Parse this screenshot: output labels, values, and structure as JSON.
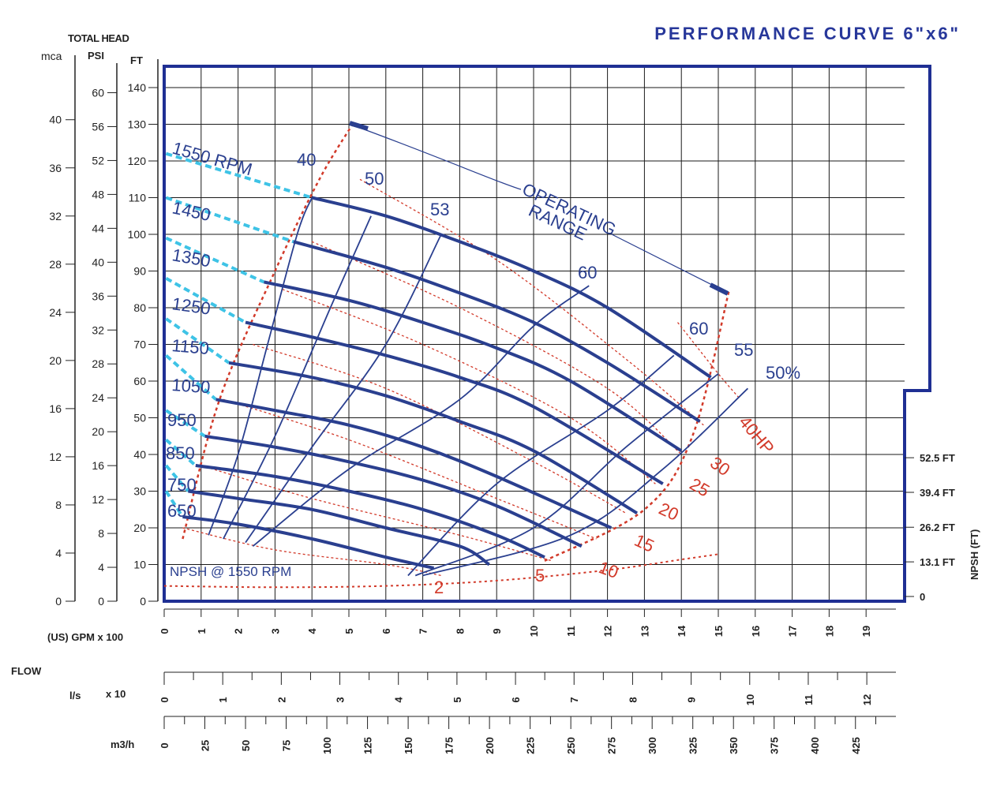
{
  "colors": {
    "frame": "#1f2f93",
    "grid": "#1a1a1a",
    "rpm_curve": "#2a3f8f",
    "eff_curve": "#2a3f8f",
    "power_curve": "#d23a2a",
    "npsh_curve": "#d23a2a",
    "dashed_extension": "#3ec3e6",
    "title": "#27379a"
  },
  "title": "PERFORMANCE CURVE  6\"x6\"",
  "labels": {
    "total_head": "TOTAL HEAD",
    "mca": "mca",
    "psi": "PSI",
    "ft": "FT",
    "gpm": "(US) GPM  x 100",
    "flow": "FLOW",
    "ls": "l/s",
    "ls_mult": "x 10",
    "m3h": "m3/h",
    "npsh_axis": "NPSH  (FT)",
    "npsh_curve": "NPSH @ 1550 RPM",
    "operating_line1": "OPERATING",
    "operating_line2": "RANGE"
  },
  "chart_data": {
    "type": "line",
    "x_unit": "GPM x 100",
    "xlim": [
      0,
      20
    ],
    "ylim": [
      0,
      145
    ],
    "x_ticks": [
      "0",
      "1",
      "2",
      "3",
      "4",
      "5",
      "6",
      "7",
      "8",
      "9",
      "10",
      "11",
      "12",
      "13",
      "14",
      "15",
      "16",
      "17",
      "18",
      "19"
    ],
    "ft_ticks": [
      "0",
      "10",
      "20",
      "30",
      "40",
      "50",
      "60",
      "70",
      "80",
      "90",
      "100",
      "110",
      "120",
      "130",
      "140"
    ],
    "psi_ticks": [
      "0",
      "4",
      "8",
      "12",
      "16",
      "20",
      "24",
      "28",
      "32",
      "36",
      "40",
      "44",
      "48",
      "52",
      "56",
      "60"
    ],
    "mca_ticks": [
      "0",
      "4",
      "8",
      "12",
      "16",
      "20",
      "24",
      "28",
      "32",
      "36",
      "40"
    ],
    "ls_ticks": [
      "0",
      "1",
      "2",
      "3",
      "4",
      "5",
      "6",
      "7",
      "8",
      "9",
      "10",
      "11",
      "12"
    ],
    "m3h_ticks": [
      "0",
      "25",
      "50",
      "75",
      "100",
      "125",
      "150",
      "175",
      "200",
      "225",
      "250",
      "275",
      "300",
      "325",
      "350",
      "375",
      "400",
      "425"
    ],
    "npsh_ticks": [
      "0",
      "13.1 FT",
      "26.2 FT",
      "39.4 FT",
      "52.5 FT"
    ],
    "npsh_values_ft": [
      0,
      13.1,
      26.2,
      39.4,
      52.5
    ],
    "rpm_curves": [
      {
        "label": "1550 RPM",
        "points": [
          [
            4.0,
            110
          ],
          [
            6,
            105
          ],
          [
            8,
            98
          ],
          [
            10,
            90
          ],
          [
            12,
            80
          ],
          [
            14.8,
            61
          ]
        ]
      },
      {
        "label": "1450",
        "points": [
          [
            3.5,
            98
          ],
          [
            6,
            91
          ],
          [
            8,
            84
          ],
          [
            10,
            76
          ],
          [
            12,
            65
          ],
          [
            14.5,
            49
          ]
        ]
      },
      {
        "label": "1350",
        "points": [
          [
            2.7,
            87
          ],
          [
            5,
            82
          ],
          [
            7,
            76
          ],
          [
            9,
            69
          ],
          [
            11,
            60
          ],
          [
            14,
            41
          ]
        ]
      },
      {
        "label": "1250",
        "points": [
          [
            2.2,
            76
          ],
          [
            4,
            72
          ],
          [
            6,
            67
          ],
          [
            8,
            61
          ],
          [
            10,
            53
          ],
          [
            13.5,
            32
          ]
        ]
      },
      {
        "label": "1150",
        "points": [
          [
            1.75,
            65
          ],
          [
            4,
            61
          ],
          [
            6,
            56
          ],
          [
            8,
            49
          ],
          [
            10,
            41
          ],
          [
            12.8,
            24
          ]
        ]
      },
      {
        "label": "1050",
        "points": [
          [
            1.4,
            55
          ],
          [
            3,
            52
          ],
          [
            5,
            48
          ],
          [
            7,
            42
          ],
          [
            9,
            34
          ],
          [
            12.1,
            20
          ]
        ]
      },
      {
        "label": "950",
        "points": [
          [
            1.1,
            45
          ],
          [
            3,
            42
          ],
          [
            5,
            38
          ],
          [
            7,
            33
          ],
          [
            9,
            26
          ],
          [
            11.3,
            15
          ]
        ]
      },
      {
        "label": "850",
        "points": [
          [
            0.85,
            37
          ],
          [
            3,
            34
          ],
          [
            5,
            30
          ],
          [
            7,
            25
          ],
          [
            9,
            18
          ],
          [
            10.3,
            12
          ]
        ]
      },
      {
        "label": "750",
        "points": [
          [
            0.65,
            30
          ],
          [
            2,
            28
          ],
          [
            4,
            25
          ],
          [
            6,
            20
          ],
          [
            8,
            15
          ],
          [
            8.8,
            10
          ]
        ]
      },
      {
        "label": "650",
        "points": [
          [
            0.5,
            23
          ],
          [
            2,
            21
          ],
          [
            4,
            17
          ],
          [
            6,
            12
          ],
          [
            7.3,
            9
          ]
        ]
      }
    ],
    "efficiency_curves": [
      {
        "label": "40",
        "points": [
          [
            1.2,
            18
          ],
          [
            2,
            40
          ],
          [
            2.8,
            70
          ],
          [
            3.6,
            100
          ],
          [
            4.0,
            110
          ]
        ]
      },
      {
        "label": "50",
        "points": [
          [
            1.6,
            17
          ],
          [
            3,
            45
          ],
          [
            4.5,
            80
          ],
          [
            5.6,
            105
          ]
        ]
      },
      {
        "label": "53",
        "points": [
          [
            2.2,
            16
          ],
          [
            4,
            42
          ],
          [
            6,
            70
          ],
          [
            7.5,
            100
          ]
        ]
      },
      {
        "label": "60",
        "points": [
          [
            2.4,
            15
          ],
          [
            5,
            36
          ],
          [
            8,
            55
          ],
          [
            10,
            75
          ],
          [
            11.5,
            86
          ]
        ]
      },
      {
        "label": "60",
        "points": [
          [
            6.6,
            7
          ],
          [
            9,
            32
          ],
          [
            12,
            52
          ],
          [
            13.8,
            67
          ]
        ]
      },
      {
        "label": "55",
        "points": [
          [
            6.8,
            7
          ],
          [
            10,
            20
          ],
          [
            12.5,
            42
          ],
          [
            15,
            62
          ]
        ]
      },
      {
        "label": "50%",
        "points": [
          [
            7.0,
            7
          ],
          [
            11,
            18
          ],
          [
            13.5,
            36
          ],
          [
            15.8,
            58
          ]
        ]
      }
    ],
    "power_curves": [
      {
        "label": "2",
        "points": [
          [
            0.5,
            20
          ],
          [
            3,
            14
          ],
          [
            6,
            10
          ],
          [
            7.5,
            7
          ]
        ]
      },
      {
        "label": "5",
        "points": [
          [
            1.0,
            37
          ],
          [
            4,
            28
          ],
          [
            8,
            18
          ],
          [
            10.5,
            11
          ]
        ]
      },
      {
        "label": "10",
        "points": [
          [
            1.6,
            55
          ],
          [
            5,
            44
          ],
          [
            9,
            28
          ],
          [
            11.7,
            17
          ]
        ]
      },
      {
        "label": "15",
        "points": [
          [
            2.4,
            70
          ],
          [
            6,
            58
          ],
          [
            10,
            38
          ],
          [
            12.5,
            24
          ]
        ]
      },
      {
        "label": "20",
        "points": [
          [
            3.2,
            85
          ],
          [
            7,
            70
          ],
          [
            11,
            50
          ],
          [
            13.3,
            32
          ]
        ]
      },
      {
        "label": "25",
        "points": [
          [
            4.0,
            98
          ],
          [
            8,
            80
          ],
          [
            12,
            58
          ],
          [
            14.0,
            40
          ]
        ]
      },
      {
        "label": "30",
        "points": [
          [
            5.3,
            115
          ],
          [
            9,
            93
          ],
          [
            12.5,
            66
          ],
          [
            14.6,
            48
          ]
        ]
      },
      {
        "label": "40HP",
        "points": [
          [
            13.9,
            76
          ],
          [
            15.0,
            62
          ],
          [
            15.6,
            55
          ]
        ]
      }
    ],
    "npsh_curve": {
      "label": "NPSH @ 1550 RPM",
      "points_gpm_npsh_ft": [
        [
          0,
          4
        ],
        [
          3,
          3.5
        ],
        [
          6,
          4
        ],
        [
          9,
          6
        ],
        [
          12,
          10
        ],
        [
          14,
          14
        ],
        [
          15,
          16
        ]
      ]
    },
    "operating_range_boundary": {
      "points": [
        [
          0.5,
          17
        ],
        [
          1.5,
          55
        ],
        [
          3,
          90
        ],
        [
          4.2,
          115
        ],
        [
          5.1,
          130
        ]
      ]
    },
    "operating_range_boundary_right": {
      "points": [
        [
          10.3,
          11
        ],
        [
          13,
          25
        ],
        [
          14.3,
          45
        ],
        [
          15.3,
          85
        ]
      ]
    }
  }
}
